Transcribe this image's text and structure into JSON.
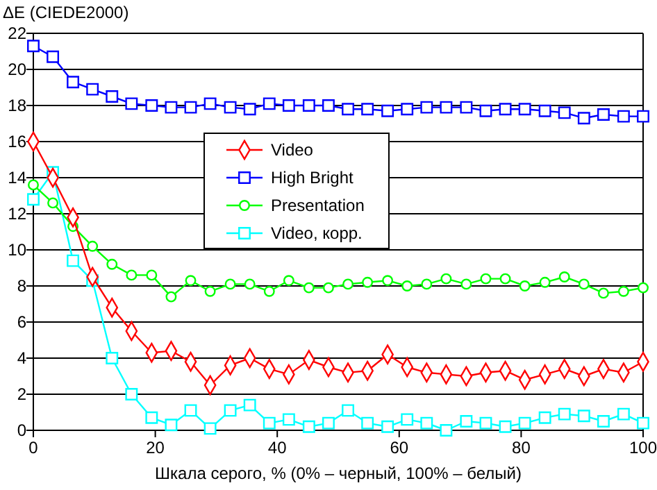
{
  "chart_data": {
    "type": "line",
    "ylabel": "ΔE (CIEDE2000)",
    "xlabel": "Шкала серого, % (0% – черный, 100% – белый)",
    "x": [
      0,
      3.2,
      6.5,
      9.7,
      12.9,
      16.1,
      19.4,
      22.6,
      25.8,
      29,
      32.3,
      35.5,
      38.7,
      41.9,
      45.2,
      48.4,
      51.6,
      54.8,
      58.1,
      61.3,
      64.5,
      67.7,
      71,
      74.2,
      77.4,
      80.6,
      83.9,
      87.1,
      90.3,
      93.5,
      96.8,
      100
    ],
    "xlim": [
      0,
      100
    ],
    "xticks": [
      0,
      20,
      40,
      60,
      80,
      100
    ],
    "ylim": [
      0,
      22
    ],
    "yticks": [
      0,
      2,
      4,
      6,
      8,
      10,
      12,
      14,
      16,
      18,
      20,
      22
    ],
    "grid": "y",
    "legend": "top",
    "series": [
      {
        "name": "Video",
        "color": "#ff0000",
        "marker": "diamond",
        "values": [
          16.0,
          14.0,
          11.8,
          8.5,
          6.8,
          5.5,
          4.3,
          4.4,
          3.8,
          2.5,
          3.6,
          4.0,
          3.4,
          3.1,
          3.9,
          3.5,
          3.2,
          3.3,
          4.2,
          3.5,
          3.2,
          3.1,
          3.0,
          3.2,
          3.3,
          2.8,
          3.1,
          3.4,
          3.0,
          3.4,
          3.2,
          3.8
        ]
      },
      {
        "name": "High Bright",
        "color": "#0000ff",
        "marker": "square",
        "values": [
          21.3,
          20.7,
          19.3,
          18.9,
          18.5,
          18.1,
          18.0,
          17.9,
          17.9,
          18.1,
          17.9,
          17.8,
          18.1,
          18.0,
          18.0,
          18.0,
          17.8,
          17.8,
          17.7,
          17.8,
          17.9,
          17.9,
          17.9,
          17.7,
          17.8,
          17.8,
          17.7,
          17.6,
          17.3,
          17.5,
          17.4,
          17.4
        ]
      },
      {
        "name": "Presentation",
        "color": "#00ff00",
        "marker": "circle",
        "values": [
          13.6,
          12.6,
          11.3,
          10.2,
          9.2,
          8.6,
          8.6,
          7.4,
          8.3,
          7.7,
          8.1,
          8.1,
          7.7,
          8.3,
          7.9,
          7.9,
          8.1,
          8.2,
          8.3,
          8.0,
          8.1,
          8.4,
          8.1,
          8.4,
          8.4,
          8.0,
          8.2,
          8.5,
          8.1,
          7.6,
          7.7,
          7.9
        ]
      },
      {
        "name": "Video, корр.",
        "color": "#00ffff",
        "marker": "square",
        "values": [
          12.8,
          14.3,
          9.4,
          8.3,
          4.0,
          2.0,
          0.7,
          0.3,
          1.1,
          0.1,
          1.1,
          1.4,
          0.4,
          0.6,
          0.2,
          0.4,
          1.1,
          0.4,
          0.2,
          0.6,
          0.4,
          0.0,
          0.5,
          0.4,
          0.2,
          0.4,
          0.7,
          0.9,
          0.8,
          0.5,
          0.9,
          0.4
        ]
      }
    ]
  }
}
